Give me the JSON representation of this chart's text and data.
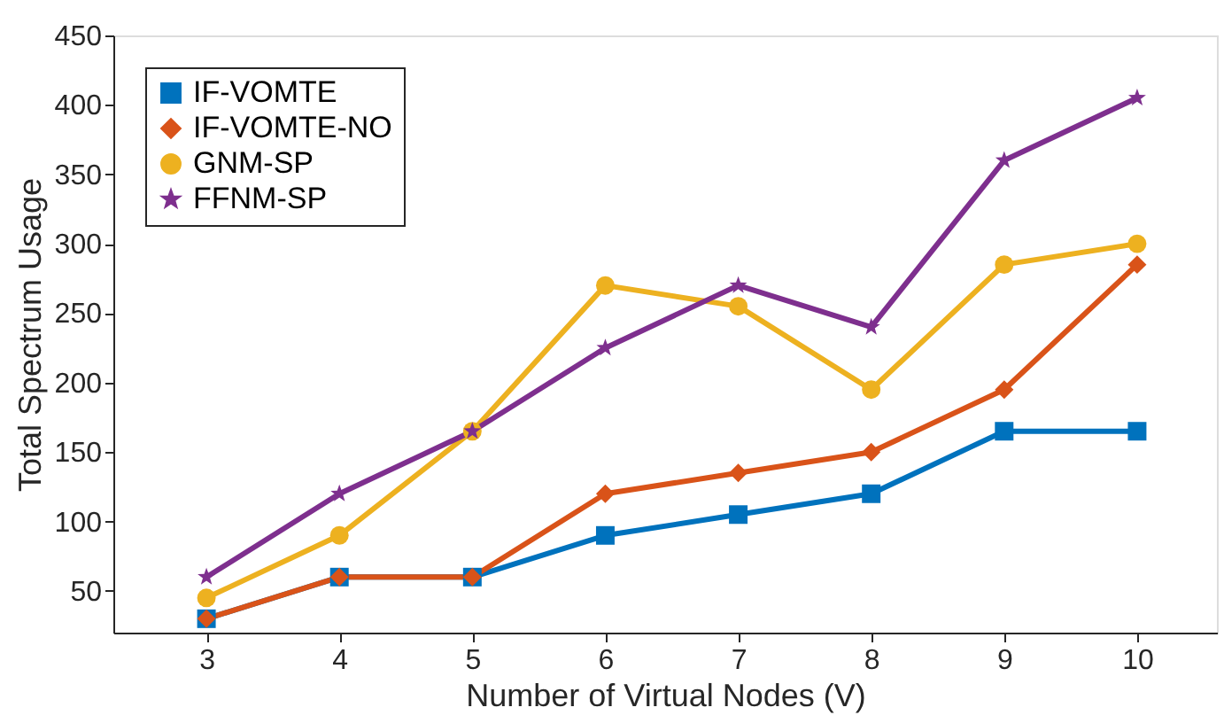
{
  "chart_data": {
    "type": "line",
    "xlabel": "Number of Virtual Nodes (V)",
    "ylabel": "Total Spectrum Usage",
    "x": [
      3,
      4,
      5,
      6,
      7,
      8,
      9,
      10
    ],
    "series": [
      {
        "name": "IF-VOMTE",
        "color": "#0072bd",
        "marker": "square",
        "values": [
          30,
          60,
          60,
          90,
          105,
          120,
          165,
          165
        ]
      },
      {
        "name": "IF-VOMTE-NO",
        "color": "#d95319",
        "marker": "diamond",
        "values": [
          30,
          60,
          60,
          120,
          135,
          150,
          195,
          285
        ]
      },
      {
        "name": "GNM-SP",
        "color": "#edb120",
        "marker": "circle",
        "values": [
          45,
          90,
          165,
          270,
          255,
          195,
          285,
          300
        ]
      },
      {
        "name": "FFNM-SP",
        "color": "#7e2f8e",
        "marker": "star",
        "values": [
          60,
          120,
          165,
          225,
          270,
          240,
          360,
          405
        ]
      }
    ],
    "xlim": [
      2.3,
      10.6
    ],
    "ylim": [
      20,
      450
    ],
    "xticks": [
      3,
      4,
      5,
      6,
      7,
      8,
      9,
      10
    ],
    "yticks": [
      50,
      100,
      150,
      200,
      250,
      300,
      350,
      400,
      450
    ],
    "grid": false,
    "legend": "top left",
    "line_style": "solid"
  }
}
